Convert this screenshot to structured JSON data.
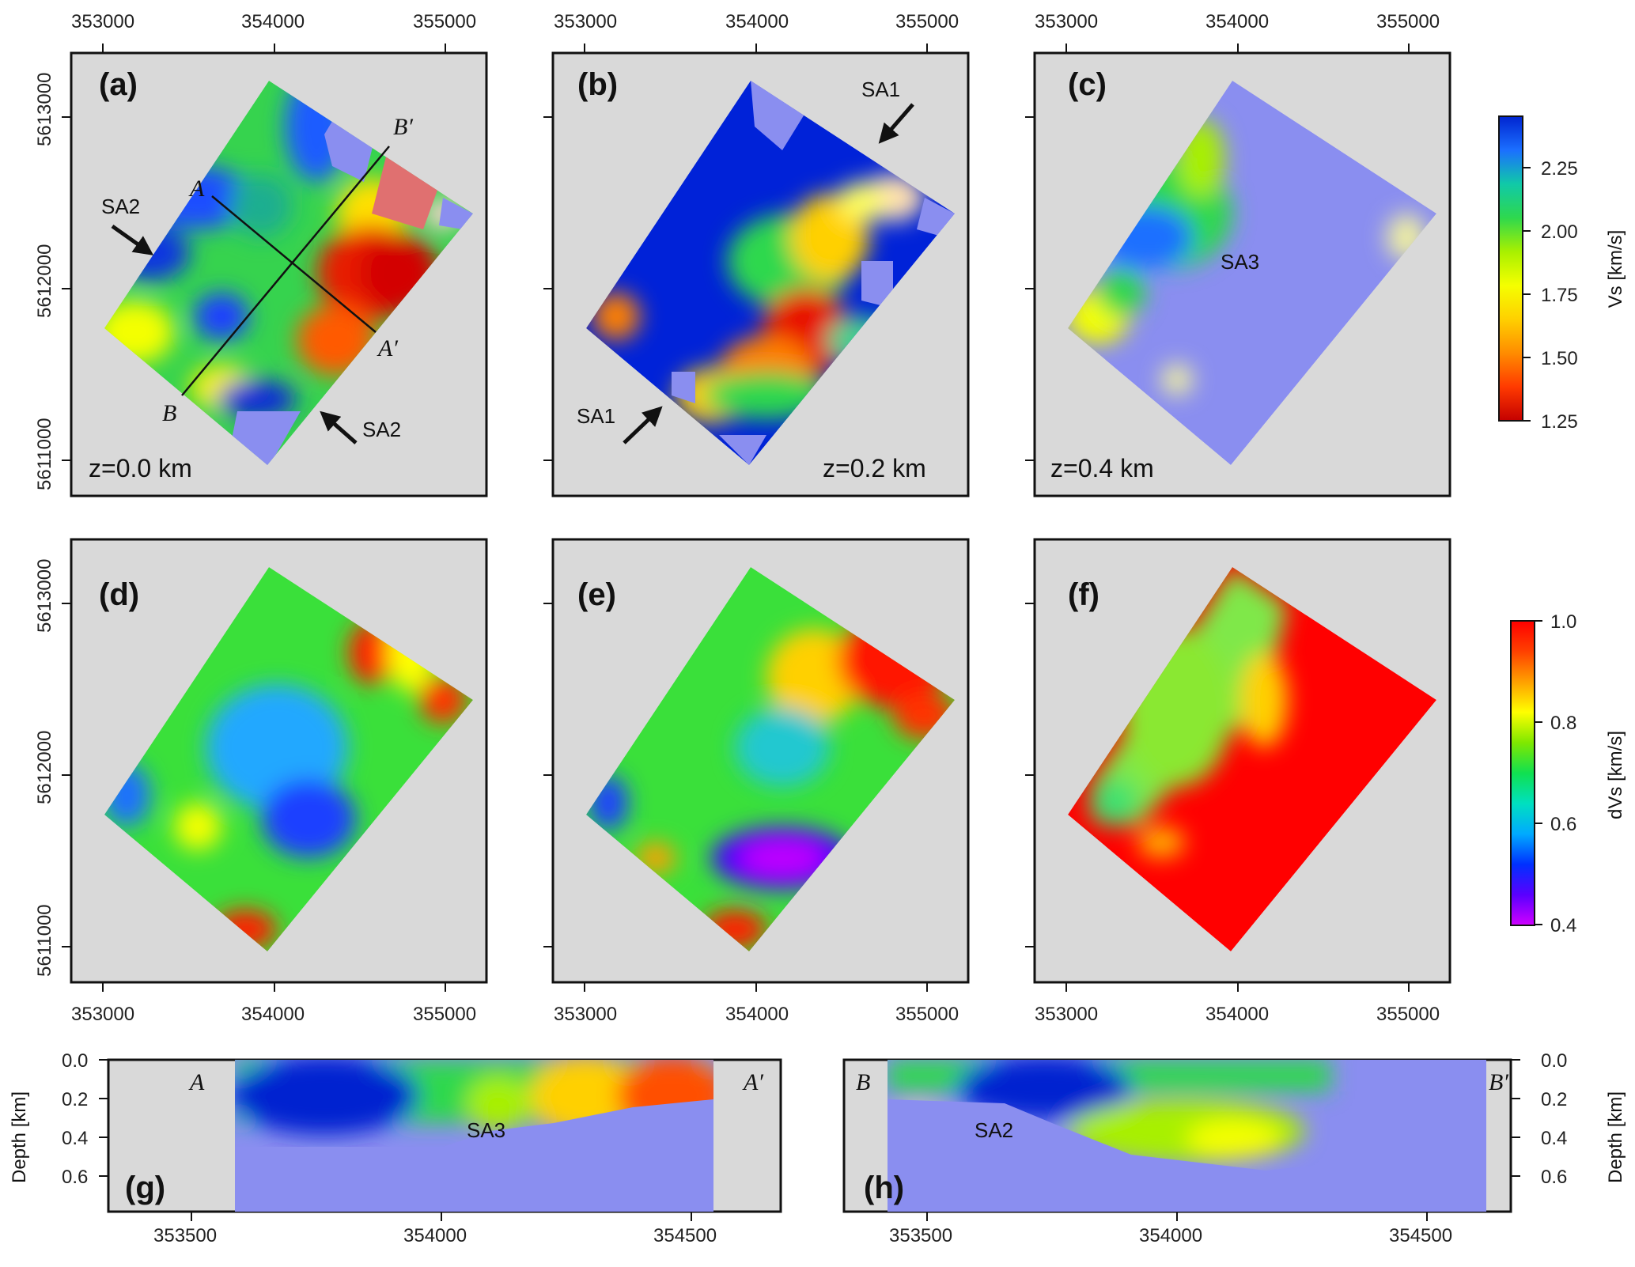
{
  "chart_data": [
    {
      "type": "heatmap",
      "map_panels": [
        {
          "id": "a",
          "label": "(a)",
          "variable": "Vs",
          "depth_label": "z=0.0 km"
        },
        {
          "id": "b",
          "label": "(b)",
          "variable": "Vs",
          "depth_label": "z=0.2 km"
        },
        {
          "id": "c",
          "label": "(c)",
          "variable": "Vs",
          "depth_label": "z=0.4 km"
        },
        {
          "id": "d",
          "label": "(d)",
          "variable": "dVs",
          "depth_label": ""
        },
        {
          "id": "e",
          "label": "(e)",
          "variable": "dVs",
          "depth_label": ""
        },
        {
          "id": "f",
          "label": "(f)",
          "variable": "dVs",
          "depth_label": ""
        }
      ],
      "map_x_ticks": [
        "353000",
        "354000",
        "355000"
      ],
      "map_y_ticks": [
        "5613000",
        "5612000",
        "5611000"
      ],
      "annotations": {
        "a": {
          "profile_AA": [
            "A",
            "A′"
          ],
          "profile_BB": [
            "B",
            "B′"
          ],
          "sa_labels": [
            "SA2",
            "SA2"
          ]
        },
        "b": {
          "sa_labels": [
            "SA1",
            "SA1"
          ]
        },
        "c": {
          "sa_labels": [
            "SA3"
          ]
        }
      },
      "colorbars": [
        {
          "title": "Vs [km/s]",
          "ticks": [
            "2.25",
            "2.00",
            "1.75",
            "1.50",
            "1.25"
          ],
          "range": [
            1.25,
            2.45
          ],
          "colors": [
            "#c40000",
            "#ff3a00",
            "#ff8c00",
            "#ffd000",
            "#f5ff00",
            "#a8f000",
            "#2ed84e",
            "#10c9a8",
            "#1b6fff",
            "#0024d0"
          ]
        },
        {
          "title": "dVs [km/s]",
          "ticks": [
            "1.0",
            "0.8",
            "0.6",
            "0.4"
          ],
          "range": [
            0.4,
            1.0
          ],
          "colors": [
            "#d000ff",
            "#5a00ff",
            "#0030ff",
            "#00aaff",
            "#00e0c0",
            "#10e050",
            "#7fe800",
            "#ffff00",
            "#ffa000",
            "#ff4000",
            "#ff0000"
          ]
        }
      ]
    },
    {
      "type": "heatmap",
      "profile_panels": [
        {
          "id": "g",
          "label": "(g)",
          "start": "A",
          "end": "A′",
          "annotation": "SA3",
          "x_range": [
            353350,
            354700
          ]
        },
        {
          "id": "h",
          "label": "(h)",
          "start": "B",
          "end": "B′",
          "annotation": "SA2",
          "x_range": [
            353350,
            354700
          ]
        }
      ],
      "profile_x_ticks": [
        "353500",
        "354000",
        "354500"
      ],
      "profile_y_ticks": [
        "0.0",
        "0.2",
        "0.4",
        "0.6"
      ],
      "ylabel": "Depth [km]",
      "ylim": [
        0.0,
        0.7
      ]
    }
  ],
  "colors": {
    "background_panel": "#d9d9d9",
    "masked": "#8a8ef0",
    "vs_fast": "#0024d0",
    "vs_slow": "#c40000",
    "dvs_high": "#ff0000",
    "dvs_low": "#7a00e8"
  }
}
